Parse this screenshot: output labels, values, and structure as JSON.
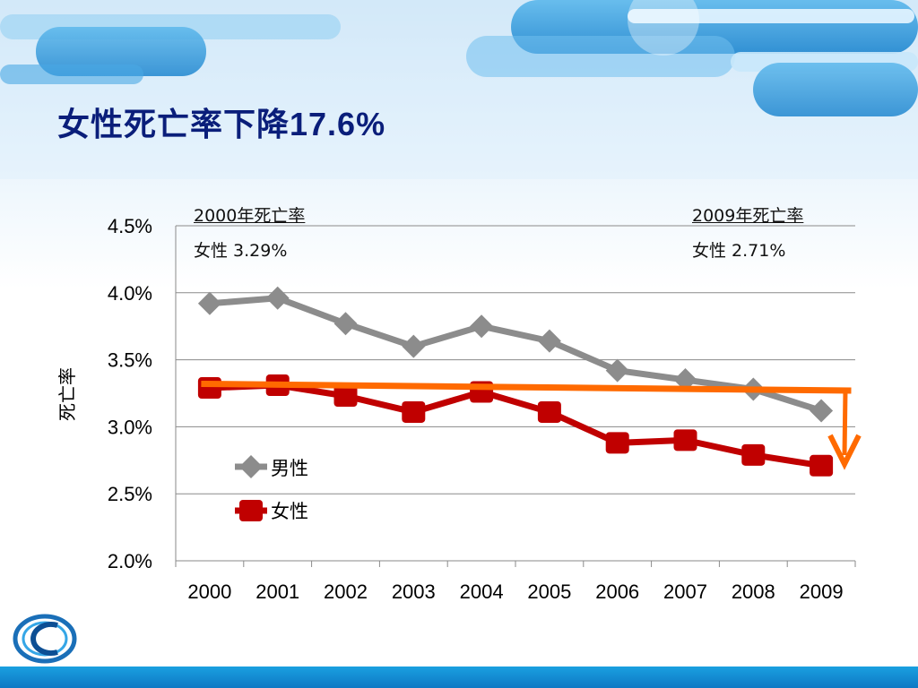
{
  "title": {
    "text": "女性死亡率下降",
    "pct": "17.6%"
  },
  "notes": {
    "left": {
      "head": "2000年死亡率",
      "line": "女性 3.29%"
    },
    "right": {
      "head": "2009年死亡率",
      "line": "女性 2.71%"
    }
  },
  "colors": {
    "male": "#8c8c8c",
    "female": "#c00000",
    "trend": "#ff6a00",
    "title": "#0a1e7a"
  },
  "chart_data": {
    "type": "line",
    "ylabel": "死亡率",
    "xlabel": "",
    "ylim": [
      2.0,
      4.5
    ],
    "yticks": [
      "2.0%",
      "2.5%",
      "3.0%",
      "3.5%",
      "4.0%",
      "4.5%"
    ],
    "ytick_values": [
      2.0,
      2.5,
      3.0,
      3.5,
      4.0,
      4.5
    ],
    "categories": [
      "2000",
      "2001",
      "2002",
      "2003",
      "2004",
      "2005",
      "2006",
      "2007",
      "2008",
      "2009"
    ],
    "grid": true,
    "legend": "inside-left",
    "series": [
      {
        "name": "男性",
        "marker": "diamond",
        "values": [
          3.92,
          3.96,
          3.77,
          3.6,
          3.75,
          3.64,
          3.42,
          3.35,
          3.28,
          3.12
        ]
      },
      {
        "name": "女性",
        "marker": "square",
        "values": [
          3.29,
          3.31,
          3.23,
          3.11,
          3.26,
          3.11,
          2.88,
          2.9,
          2.79,
          2.71
        ]
      }
    ],
    "trend_line": {
      "from": 3.32,
      "to": 3.27
    }
  }
}
